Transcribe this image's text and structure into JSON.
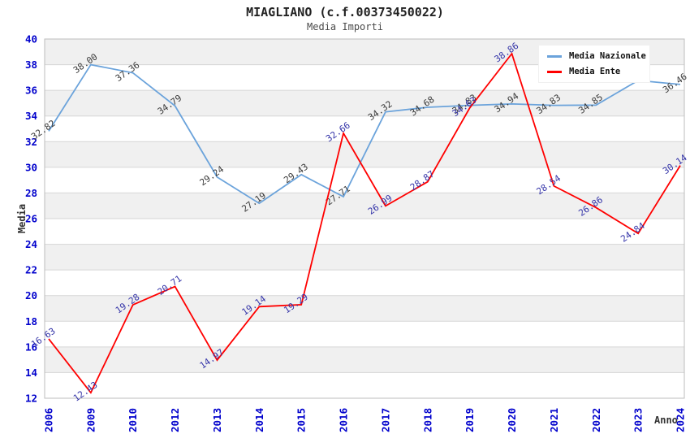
{
  "chart_data": {
    "type": "line",
    "title": "MIAGLIANO (c.f.00373450022)",
    "subtitle": "Media Importi",
    "xlabel": "Anno",
    "ylabel": "Media",
    "ylim": [
      12,
      40
    ],
    "yticks": [
      12,
      14,
      16,
      18,
      20,
      22,
      24,
      26,
      28,
      30,
      32,
      34,
      36,
      38,
      40
    ],
    "grid": "horizontal-bands-alternating",
    "legend_position": "top-right",
    "categories": [
      "2006",
      "2009",
      "2010",
      "2012",
      "2013",
      "2014",
      "2015",
      "2016",
      "2017",
      "2018",
      "2019",
      "2020",
      "2021",
      "2022",
      "2023",
      "2024"
    ],
    "series": [
      {
        "name": "Media Nazionale",
        "color": "#6BA3DB",
        "label_color": "#3A3A3A",
        "values": [
          32.82,
          38.0,
          37.36,
          34.79,
          29.24,
          27.19,
          29.43,
          27.71,
          34.32,
          34.68,
          34.83,
          34.94,
          34.83,
          34.85,
          36.77,
          36.46
        ],
        "labels": [
          "32.82",
          "38.00",
          "37.36",
          "34.79",
          "29.24",
          "27.19",
          "29.43",
          "27.71",
          "34.32",
          "34.68",
          "34.83",
          "34.94",
          "34.83",
          "34.85",
          "",
          "36.46"
        ]
      },
      {
        "name": "Media Ente",
        "color": "#FF0000",
        "label_color": "#3333A8",
        "values": [
          16.63,
          12.43,
          19.28,
          20.71,
          14.97,
          19.14,
          19.29,
          32.66,
          26.99,
          28.87,
          34.63,
          38.86,
          28.54,
          26.86,
          24.84,
          30.14
        ],
        "labels": [
          "16.63",
          "12.43",
          "19.28",
          "20.71",
          "14.97",
          "19.14",
          "19.29",
          "32.66",
          "26.99",
          "28.87",
          "34.63",
          "38.86",
          "28.54",
          "26.86",
          "24.84",
          "30.14"
        ]
      }
    ],
    "colors": {
      "tick_label": "#0000CC",
      "band_gray": "#F0F0F0",
      "gridline": "#D6D6D6",
      "plot_border": "#BDBDBD",
      "axis_title": "#333333",
      "background": "#FFFFFF"
    }
  }
}
